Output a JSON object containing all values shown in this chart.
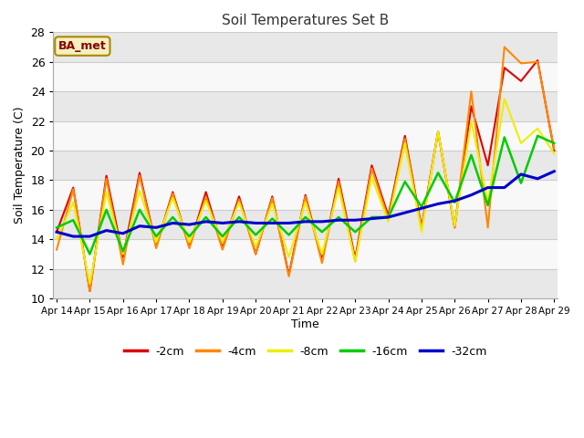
{
  "title": "Soil Temperatures Set B",
  "xlabel": "Time",
  "ylabel": "Soil Temperature (C)",
  "ylim": [
    10,
    28
  ],
  "yticks": [
    10,
    12,
    14,
    16,
    18,
    20,
    22,
    24,
    26,
    28
  ],
  "label_tag": "BA_met",
  "colors": {
    "-2cm": "#dd0000",
    "-4cm": "#ff8800",
    "-8cm": "#eeee00",
    "-16cm": "#00cc00",
    "-32cm": "#0000cc"
  },
  "x_labels": [
    "Apr 14",
    "Apr 15",
    "Apr 16",
    "Apr 17",
    "Apr 18",
    "Apr 19",
    "Apr 20",
    "Apr 21",
    "Apr 22",
    "Apr 23",
    "Apr 24",
    "Apr 25",
    "Apr 26",
    "Apr 27",
    "Apr 28",
    "Apr 29"
  ],
  "series_order": [
    "-2cm",
    "-4cm",
    "-8cm",
    "-16cm",
    "-32cm"
  ],
  "linewidths": [
    1.5,
    1.5,
    1.5,
    1.8,
    2.2
  ],
  "series": {
    "-2cm": [
      14.5,
      17.5,
      10.5,
      18.3,
      12.8,
      18.5,
      13.5,
      17.2,
      13.5,
      17.2,
      13.4,
      16.9,
      13.0,
      16.9,
      11.6,
      17.0,
      12.6,
      18.1,
      12.7,
      19.0,
      15.6,
      21.0,
      14.8,
      21.3,
      14.8,
      23.0,
      19.0,
      25.6,
      24.7,
      26.1,
      20.0
    ],
    "-4cm": [
      13.3,
      17.4,
      10.5,
      18.1,
      12.3,
      18.3,
      13.4,
      17.1,
      13.4,
      16.9,
      13.3,
      16.7,
      13.0,
      16.8,
      11.5,
      16.9,
      12.4,
      17.9,
      12.5,
      18.8,
      15.4,
      20.8,
      14.7,
      21.2,
      14.8,
      24.0,
      14.8,
      27.0,
      25.9,
      26.0,
      20.1
    ],
    "-8cm": [
      14.0,
      16.5,
      11.0,
      17.2,
      13.0,
      17.3,
      13.8,
      16.8,
      13.8,
      16.6,
      13.8,
      16.5,
      13.5,
      16.4,
      12.8,
      16.5,
      13.0,
      17.5,
      12.5,
      18.2,
      15.2,
      20.5,
      14.5,
      21.3,
      14.9,
      22.0,
      16.5,
      23.5,
      20.5,
      21.5,
      19.8
    ],
    "-16cm": [
      14.8,
      15.3,
      13.0,
      16.0,
      13.2,
      16.0,
      14.2,
      15.5,
      14.2,
      15.5,
      14.2,
      15.5,
      14.3,
      15.4,
      14.3,
      15.5,
      14.5,
      15.5,
      14.5,
      15.5,
      15.5,
      17.9,
      16.2,
      18.5,
      16.5,
      19.7,
      16.3,
      20.9,
      17.8,
      21.0,
      20.5
    ],
    "-32cm": [
      14.5,
      14.2,
      14.2,
      14.6,
      14.4,
      14.9,
      14.8,
      15.1,
      15.0,
      15.2,
      15.1,
      15.2,
      15.1,
      15.1,
      15.1,
      15.2,
      15.2,
      15.3,
      15.3,
      15.4,
      15.5,
      15.8,
      16.1,
      16.4,
      16.6,
      17.0,
      17.5,
      17.5,
      18.4,
      18.1,
      18.6
    ]
  },
  "outer_bg": "#ffffff",
  "plot_bg": "#ffffff",
  "band_colors": [
    "#e8e8e8",
    "#f8f8f8"
  ],
  "grid_line_color": "#cccccc"
}
